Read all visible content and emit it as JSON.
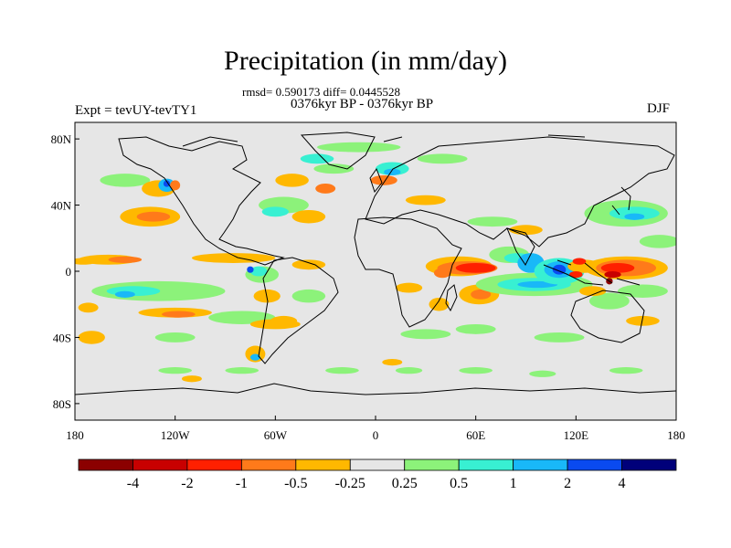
{
  "title": "Precipitation (in mm/day)",
  "stats": "rmsd= 0.590173 diff= 0.0445528",
  "period": "0376kyr BP - 0376kyr BP",
  "experiment": "Expt = tevUY-tevTY1",
  "season": "DJF",
  "map": {
    "lat_ticks": [
      "80N",
      "40N",
      "0",
      "40S",
      "80S"
    ],
    "lon_ticks": [
      "180",
      "120W",
      "60W",
      "0",
      "60E",
      "120E",
      "180"
    ],
    "lat_values": [
      80,
      40,
      0,
      -40,
      -80
    ],
    "lon_values": [
      -180,
      -120,
      -60,
      0,
      60,
      120,
      180
    ],
    "lat_range": [
      -90,
      90
    ],
    "lon_range": [
      -180,
      180
    ],
    "background_color": "#e6e6e6"
  },
  "colorbar": {
    "colors": [
      "#8b0000",
      "#c80000",
      "#ff2000",
      "#ff7a1a",
      "#ffb800",
      "#e6e6e6",
      "#8cf27a",
      "#38f0d2",
      "#19b8f8",
      "#0a4af0",
      "#00007a"
    ],
    "labels": [
      "-4",
      "-2",
      "-1",
      "-0.5",
      "-0.25",
      "0.25",
      "0.5",
      "1",
      "2",
      "4"
    ]
  },
  "anomaly_regions": [
    {
      "color": "#ffb800",
      "lon": -135,
      "lat": 33,
      "rx": 18,
      "ry": 6
    },
    {
      "color": "#ff7a1a",
      "lon": -133,
      "lat": 33,
      "rx": 10,
      "ry": 3
    },
    {
      "color": "#ffb800",
      "lon": -160,
      "lat": 7,
      "rx": 18,
      "ry": 3
    },
    {
      "color": "#ff7a1a",
      "lon": -150,
      "lat": 7,
      "rx": 10,
      "ry": 2
    },
    {
      "color": "#ffb800",
      "lon": -85,
      "lat": 8,
      "rx": 25,
      "ry": 3
    },
    {
      "color": "#ffb800",
      "lon": -40,
      "lat": 4,
      "rx": 10,
      "ry": 3
    },
    {
      "color": "#ffb800",
      "lon": -175,
      "lat": 6,
      "rx": 8,
      "ry": 2
    },
    {
      "color": "#8cf27a",
      "lon": -130,
      "lat": -12,
      "rx": 40,
      "ry": 6
    },
    {
      "color": "#38f0d2",
      "lon": -145,
      "lat": -12,
      "rx": 16,
      "ry": 3
    },
    {
      "color": "#19b8f8",
      "lon": -150,
      "lat": -14,
      "rx": 6,
      "ry": 2
    },
    {
      "color": "#ffb800",
      "lon": -120,
      "lat": -25,
      "rx": 22,
      "ry": 3
    },
    {
      "color": "#ff7a1a",
      "lon": -118,
      "lat": -26,
      "rx": 10,
      "ry": 2
    },
    {
      "color": "#8cf27a",
      "lon": -80,
      "lat": -28,
      "rx": 20,
      "ry": 4
    },
    {
      "color": "#ffb800",
      "lon": -60,
      "lat": -32,
      "rx": 15,
      "ry": 3
    },
    {
      "color": "#ffb800",
      "lon": -172,
      "lat": -22,
      "rx": 6,
      "ry": 3
    },
    {
      "color": "#ffb800",
      "lon": -170,
      "lat": -40,
      "rx": 8,
      "ry": 4
    },
    {
      "color": "#8cf27a",
      "lon": -120,
      "lat": -40,
      "rx": 12,
      "ry": 3
    },
    {
      "color": "#8cf27a",
      "lon": -150,
      "lat": 55,
      "rx": 15,
      "ry": 4
    },
    {
      "color": "#ffb800",
      "lon": -130,
      "lat": 50,
      "rx": 10,
      "ry": 5
    },
    {
      "color": "#19b8f8",
      "lon": -125,
      "lat": 52,
      "rx": 5,
      "ry": 4
    },
    {
      "color": "#0a4af0",
      "lon": -125,
      "lat": 53,
      "rx": 2,
      "ry": 2
    },
    {
      "color": "#ff7a1a",
      "lon": -120,
      "lat": 52,
      "rx": 3,
      "ry": 3
    },
    {
      "color": "#8cf27a",
      "lon": -55,
      "lat": 40,
      "rx": 15,
      "ry": 5
    },
    {
      "color": "#38f0d2",
      "lon": -60,
      "lat": 36,
      "rx": 8,
      "ry": 3
    },
    {
      "color": "#ffb800",
      "lon": -40,
      "lat": 33,
      "rx": 10,
      "ry": 4
    },
    {
      "color": "#ffb800",
      "lon": -50,
      "lat": 55,
      "rx": 10,
      "ry": 4
    },
    {
      "color": "#ff7a1a",
      "lon": -30,
      "lat": 50,
      "rx": 6,
      "ry": 3
    },
    {
      "color": "#8cf27a",
      "lon": -25,
      "lat": 62,
      "rx": 12,
      "ry": 3
    },
    {
      "color": "#38f0d2",
      "lon": -35,
      "lat": 68,
      "rx": 10,
      "ry": 3
    },
    {
      "color": "#8cf27a",
      "lon": -10,
      "lat": 75,
      "rx": 25,
      "ry": 3
    },
    {
      "color": "#38f0d2",
      "lon": 10,
      "lat": 62,
      "rx": 10,
      "ry": 4
    },
    {
      "color": "#19b8f8",
      "lon": 10,
      "lat": 60,
      "rx": 5,
      "ry": 2
    },
    {
      "color": "#ff7a1a",
      "lon": 5,
      "lat": 55,
      "rx": 8,
      "ry": 3
    },
    {
      "color": "#ffb800",
      "lon": 30,
      "lat": 43,
      "rx": 12,
      "ry": 3
    },
    {
      "color": "#8cf27a",
      "lon": 40,
      "lat": 68,
      "rx": 15,
      "ry": 3
    },
    {
      "color": "#8cf27a",
      "lon": 70,
      "lat": 30,
      "rx": 15,
      "ry": 3
    },
    {
      "color": "#ffb800",
      "lon": 90,
      "lat": 25,
      "rx": 10,
      "ry": 3
    },
    {
      "color": "#8cf27a",
      "lon": 150,
      "lat": 35,
      "rx": 25,
      "ry": 8
    },
    {
      "color": "#38f0d2",
      "lon": 155,
      "lat": 35,
      "rx": 15,
      "ry": 4
    },
    {
      "color": "#19b8f8",
      "lon": 155,
      "lat": 33,
      "rx": 6,
      "ry": 2
    },
    {
      "color": "#8cf27a",
      "lon": 170,
      "lat": 18,
      "rx": 12,
      "ry": 4
    },
    {
      "color": "#8cf27a",
      "lon": -68,
      "lat": -2,
      "rx": 10,
      "ry": 5
    },
    {
      "color": "#38f0d2",
      "lon": -70,
      "lat": 0,
      "rx": 5,
      "ry": 3
    },
    {
      "color": "#0a4af0",
      "lon": -75,
      "lat": 1,
      "rx": 2,
      "ry": 2
    },
    {
      "color": "#ffb800",
      "lon": -65,
      "lat": -15,
      "rx": 8,
      "ry": 4
    },
    {
      "color": "#8cf27a",
      "lon": -40,
      "lat": -15,
      "rx": 10,
      "ry": 4
    },
    {
      "color": "#ffb800",
      "lon": -55,
      "lat": -30,
      "rx": 8,
      "ry": 3
    },
    {
      "color": "#ffb800",
      "lon": -72,
      "lat": -50,
      "rx": 6,
      "ry": 5
    },
    {
      "color": "#19b8f8",
      "lon": -72,
      "lat": -52,
      "rx": 3,
      "ry": 2
    },
    {
      "color": "#ffb800",
      "lon": 50,
      "lat": 3,
      "rx": 20,
      "ry": 6
    },
    {
      "color": "#ff7a1a",
      "lon": 55,
      "lat": 2,
      "rx": 18,
      "ry": 4
    },
    {
      "color": "#ff2000",
      "lon": 60,
      "lat": 2,
      "rx": 12,
      "ry": 3
    },
    {
      "color": "#ff7a1a",
      "lon": 40,
      "lat": -1,
      "rx": 5,
      "ry": 3
    },
    {
      "color": "#ffb800",
      "lon": 62,
      "lat": -14,
      "rx": 12,
      "ry": 6
    },
    {
      "color": "#ff7a1a",
      "lon": 63,
      "lat": -14,
      "rx": 6,
      "ry": 3
    },
    {
      "color": "#ffb800",
      "lon": 38,
      "lat": -20,
      "rx": 6,
      "ry": 4
    },
    {
      "color": "#ffb800",
      "lon": 20,
      "lat": -10,
      "rx": 8,
      "ry": 3
    },
    {
      "color": "#8cf27a",
      "lon": 80,
      "lat": 10,
      "rx": 12,
      "ry": 5
    },
    {
      "color": "#38f0d2",
      "lon": 85,
      "lat": 8,
      "rx": 8,
      "ry": 3
    },
    {
      "color": "#19b8f8",
      "lon": 93,
      "lat": 5,
      "rx": 8,
      "ry": 6
    },
    {
      "color": "#8cf27a",
      "lon": 95,
      "lat": -8,
      "rx": 35,
      "ry": 7
    },
    {
      "color": "#38f0d2",
      "lon": 95,
      "lat": -8,
      "rx": 22,
      "ry": 4
    },
    {
      "color": "#19b8f8",
      "lon": 97,
      "lat": -8,
      "rx": 12,
      "ry": 2
    },
    {
      "color": "#38f0d2",
      "lon": 110,
      "lat": 0,
      "rx": 15,
      "ry": 8
    },
    {
      "color": "#19b8f8",
      "lon": 110,
      "lat": 1,
      "rx": 9,
      "ry": 5
    },
    {
      "color": "#0a4af0",
      "lon": 110,
      "lat": 1,
      "rx": 4,
      "ry": 3
    },
    {
      "color": "#ffb800",
      "lon": 125,
      "lat": 3,
      "rx": 10,
      "ry": 4
    },
    {
      "color": "#ff2000",
      "lon": 120,
      "lat": -2,
      "rx": 4,
      "ry": 2
    },
    {
      "color": "#ff2000",
      "lon": 122,
      "lat": 6,
      "rx": 4,
      "ry": 2
    },
    {
      "color": "#ffb800",
      "lon": 150,
      "lat": 2,
      "rx": 25,
      "ry": 7
    },
    {
      "color": "#ff7a1a",
      "lon": 150,
      "lat": 2,
      "rx": 18,
      "ry": 5
    },
    {
      "color": "#ff2000",
      "lon": 145,
      "lat": 2,
      "rx": 10,
      "ry": 3
    },
    {
      "color": "#c80000",
      "lon": 142,
      "lat": -2,
      "rx": 5,
      "ry": 2
    },
    {
      "color": "#8b0000",
      "lon": 140,
      "lat": -6,
      "rx": 2,
      "ry": 2
    },
    {
      "color": "#8cf27a",
      "lon": 140,
      "lat": -18,
      "rx": 12,
      "ry": 5
    },
    {
      "color": "#ffb800",
      "lon": 130,
      "lat": -12,
      "rx": 8,
      "ry": 3
    },
    {
      "color": "#8cf27a",
      "lon": 160,
      "lat": -12,
      "rx": 15,
      "ry": 4
    },
    {
      "color": "#ffb800",
      "lon": 160,
      "lat": -30,
      "rx": 10,
      "ry": 3
    },
    {
      "color": "#8cf27a",
      "lon": 30,
      "lat": -38,
      "rx": 15,
      "ry": 3
    },
    {
      "color": "#8cf27a",
      "lon": 60,
      "lat": -35,
      "rx": 12,
      "ry": 3
    },
    {
      "color": "#8cf27a",
      "lon": 110,
      "lat": -40,
      "rx": 15,
      "ry": 3
    },
    {
      "color": "#8cf27a",
      "lon": -120,
      "lat": -60,
      "rx": 10,
      "ry": 2
    },
    {
      "color": "#8cf27a",
      "lon": -80,
      "lat": -60,
      "rx": 10,
      "ry": 2
    },
    {
      "color": "#8cf27a",
      "lon": -20,
      "lat": -60,
      "rx": 10,
      "ry": 2
    },
    {
      "color": "#8cf27a",
      "lon": 20,
      "lat": -60,
      "rx": 8,
      "ry": 2
    },
    {
      "color": "#8cf27a",
      "lon": 60,
      "lat": -60,
      "rx": 10,
      "ry": 2
    },
    {
      "color": "#8cf27a",
      "lon": 100,
      "lat": -62,
      "rx": 8,
      "ry": 2
    },
    {
      "color": "#8cf27a",
      "lon": 150,
      "lat": -60,
      "rx": 10,
      "ry": 2
    },
    {
      "color": "#ffb800",
      "lon": -110,
      "lat": -65,
      "rx": 6,
      "ry": 2
    },
    {
      "color": "#ffb800",
      "lon": 10,
      "lat": -55,
      "rx": 6,
      "ry": 2
    }
  ]
}
